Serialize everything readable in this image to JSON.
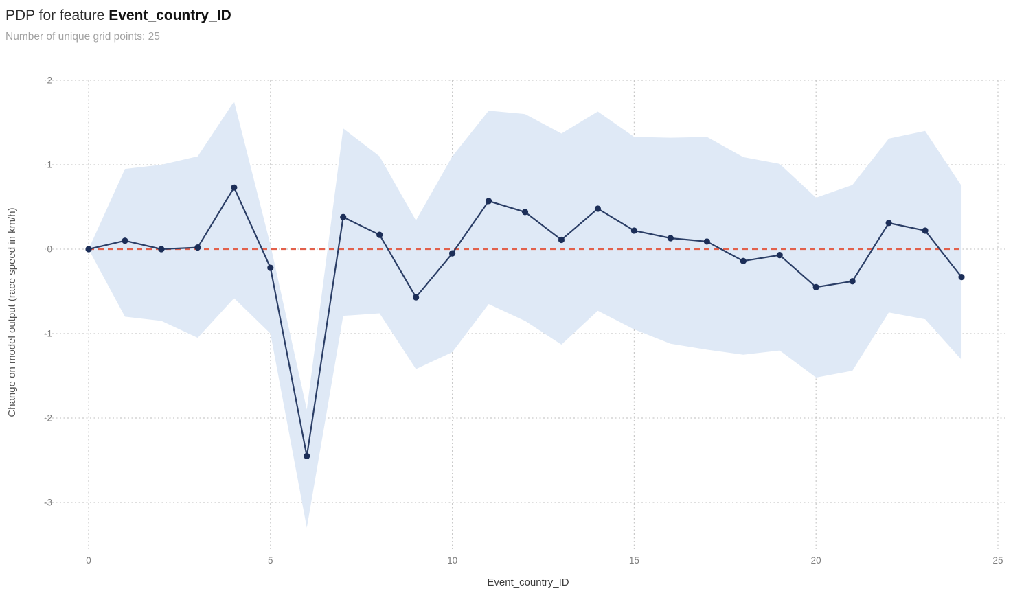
{
  "header": {
    "title_prefix": "PDP for feature ",
    "title_feature": "Event_country_ID",
    "subtitle": "Number of unique grid points: 25"
  },
  "colors": {
    "line": "#2b3e66",
    "marker": "#1c2e58",
    "band": "#dfe9f6",
    "zero_line": "#e2604b",
    "grid": "#c9c9c9",
    "tick_text": "#7d7d7d"
  },
  "chart_data": {
    "type": "line",
    "title": "PDP for feature Event_country_ID",
    "xlabel": "Event_country_ID",
    "ylabel": "Change on model output (race speed in km/h)",
    "xlim": [
      0,
      25
    ],
    "ylim": [
      -3.5,
      2
    ],
    "x_ticks": [
      0,
      5,
      10,
      15,
      20,
      25
    ],
    "y_ticks": [
      2,
      1,
      0,
      -1,
      -2,
      -3
    ],
    "grid": true,
    "legend": "none",
    "zero_line_y": 0,
    "x": [
      0,
      1,
      2,
      3,
      4,
      5,
      6,
      7,
      8,
      9,
      10,
      11,
      12,
      13,
      14,
      15,
      16,
      17,
      18,
      19,
      20,
      21,
      22,
      23,
      24
    ],
    "series": [
      {
        "name": "pdp",
        "values": [
          0.0,
          0.1,
          0.0,
          0.02,
          0.73,
          -0.22,
          -2.45,
          0.38,
          0.17,
          -0.57,
          -0.05,
          0.57,
          0.44,
          0.11,
          0.48,
          0.22,
          0.13,
          0.09,
          -0.14,
          -0.07,
          -0.45,
          -0.38,
          0.31,
          0.22,
          -0.33
        ]
      },
      {
        "name": "band_upper",
        "values": [
          0.0,
          0.95,
          1.0,
          1.1,
          1.75,
          0.05,
          -1.9,
          1.43,
          1.1,
          0.34,
          1.1,
          1.64,
          1.6,
          1.37,
          1.63,
          1.33,
          1.32,
          1.33,
          1.09,
          1.01,
          0.61,
          0.76,
          1.31,
          1.4,
          0.75
        ]
      },
      {
        "name": "band_lower",
        "values": [
          0.0,
          -0.8,
          -0.85,
          -1.05,
          -0.58,
          -1.0,
          -3.3,
          -0.79,
          -0.76,
          -1.42,
          -1.22,
          -0.65,
          -0.85,
          -1.13,
          -0.73,
          -0.95,
          -1.12,
          -1.19,
          -1.25,
          -1.2,
          -1.52,
          -1.44,
          -0.75,
          -0.83,
          -1.31
        ]
      }
    ]
  }
}
